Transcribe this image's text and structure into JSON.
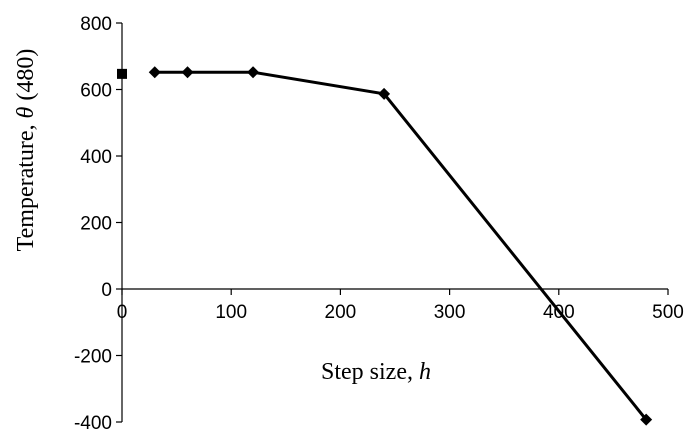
{
  "chart_data": {
    "type": "line",
    "title": "",
    "xlabel": {
      "text": "Step size, ",
      "var": "h"
    },
    "ylabel": {
      "text": "Temperature, ",
      "var": "θ",
      "suffix": " (480)"
    },
    "xlim": [
      0,
      500
    ],
    "ylim": [
      -400,
      800
    ],
    "xticks": [
      "0",
      "100",
      "200",
      "300",
      "400",
      "500"
    ],
    "yticks": [
      "800",
      "600",
      "400",
      "200",
      "0",
      "-200",
      "-400"
    ],
    "grid": false,
    "legend": "none",
    "series": [
      {
        "marker": "diamond",
        "line": true,
        "color": "#000000",
        "points": [
          {
            "x": 30,
            "y": 652
          },
          {
            "x": 60,
            "y": 652
          },
          {
            "x": 120,
            "y": 652
          },
          {
            "x": 240,
            "y": 587
          },
          {
            "x": 480,
            "y": -393
          }
        ]
      },
      {
        "marker": "square",
        "line": false,
        "color": "#000000",
        "points": [
          {
            "x": 0,
            "y": 647
          }
        ]
      }
    ]
  }
}
